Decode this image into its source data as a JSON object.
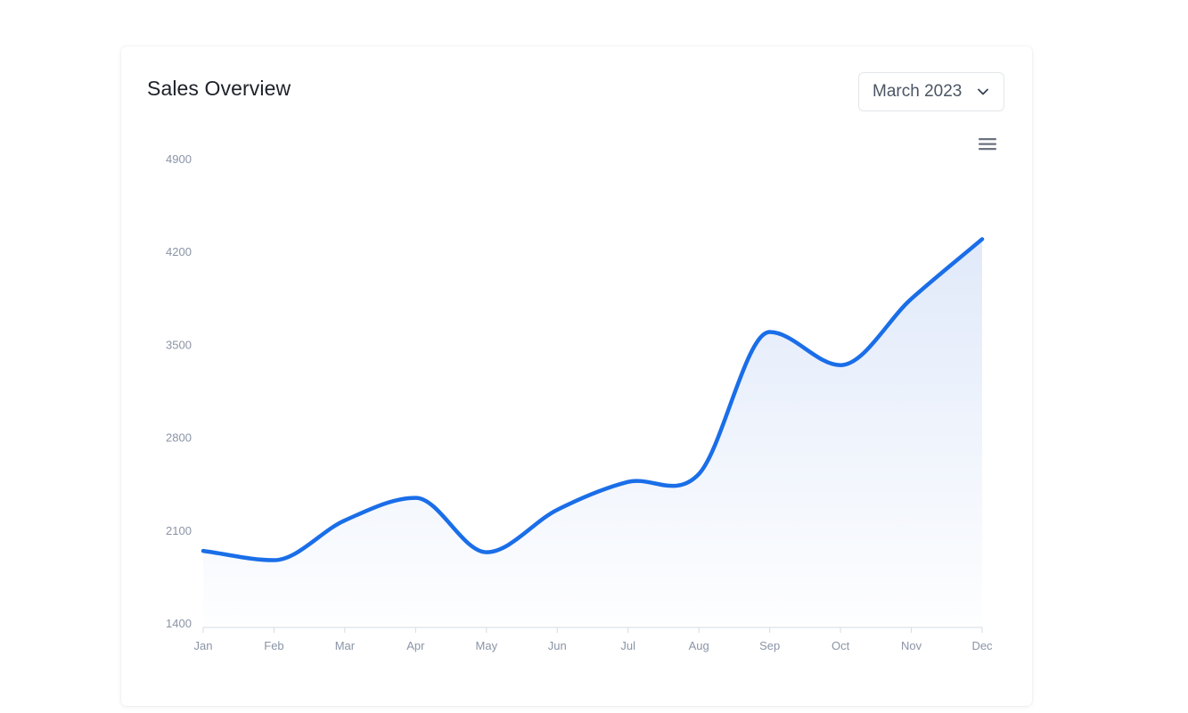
{
  "header": {
    "title": "Sales Overview"
  },
  "period_select": {
    "value": "March 2023",
    "icon": "chevron-down-icon"
  },
  "toolbar": {
    "menu_icon": "hamburger-menu-icon"
  },
  "colors": {
    "line": "#1a6ee8",
    "area_top": "#dde7f9",
    "axis": "#d6dbe3",
    "tick_text": "#8a94a6"
  },
  "chart_data": {
    "type": "area",
    "title": "Sales Overview",
    "categories": [
      "Jan",
      "Feb",
      "Mar",
      "Apr",
      "May",
      "Jun",
      "Jul",
      "Aug",
      "Sep",
      "Oct",
      "Nov",
      "Dec"
    ],
    "series": [
      {
        "values": [
          1950,
          1880,
          2180,
          2350,
          1940,
          2260,
          2470,
          2530,
          3600,
          3350,
          3850,
          4300
        ]
      }
    ],
    "ylim": [
      1400,
      4900
    ],
    "yticks": [
      1400,
      2100,
      2800,
      3500,
      4200,
      4900
    ],
    "grid": false,
    "legend": "none",
    "xlabel": "",
    "ylabel": ""
  }
}
